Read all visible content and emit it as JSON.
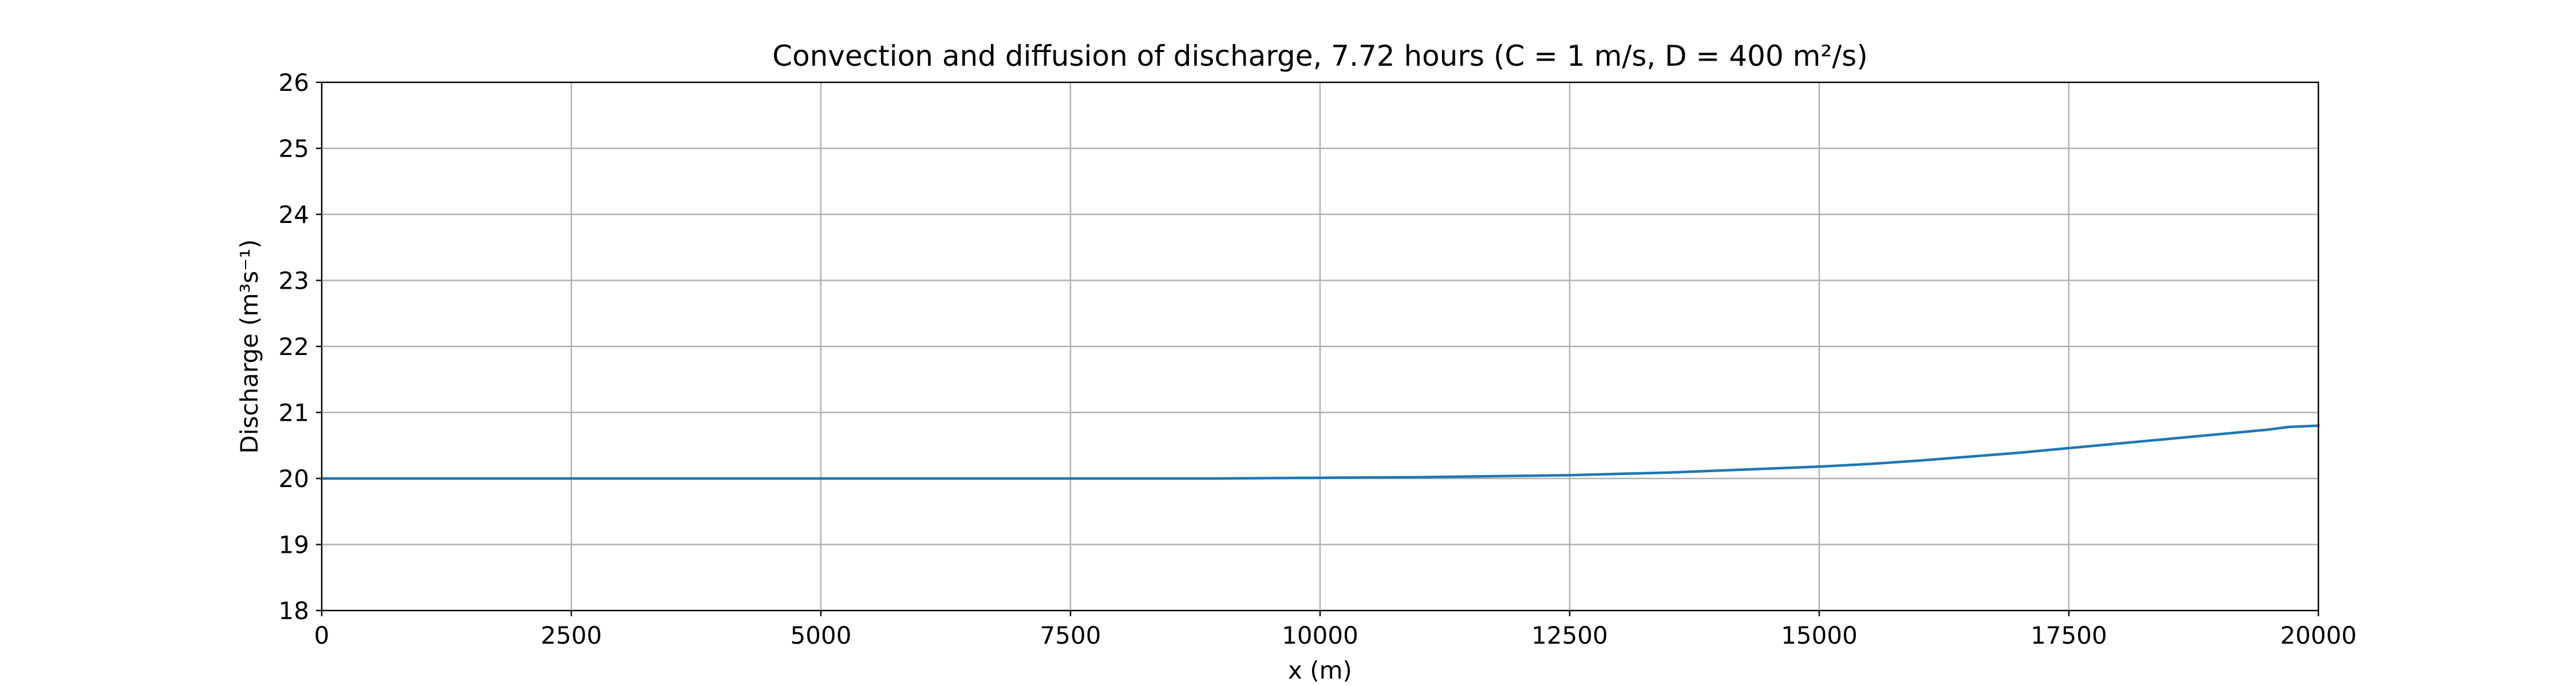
{
  "chart_data": {
    "type": "line",
    "title": "Convection and diffusion of discharge, 7.72 hours (C = 1 m/s, D = 400 m²/s)",
    "xlabel": "x (m)",
    "ylabel": "Discharge (m³s⁻¹)",
    "xlim": [
      0,
      20000
    ],
    "ylim": [
      18,
      26
    ],
    "xticks": [
      0,
      2500,
      5000,
      7500,
      10000,
      12500,
      15000,
      17500,
      20000
    ],
    "yticks": [
      18,
      19,
      20,
      21,
      22,
      23,
      24,
      25,
      26
    ],
    "grid": true,
    "colors": {
      "line": "#1f77b4",
      "grid": "#b0b0b0"
    },
    "series": [
      {
        "x": [
          0,
          2500,
          5000,
          7500,
          9000,
          10000,
          11000,
          12000,
          12500,
          13000,
          13500,
          14000,
          14500,
          15000,
          15500,
          16000,
          16500,
          17000,
          17500,
          18000,
          18500,
          19000,
          19500,
          19700,
          20000
        ],
        "y": [
          20.0,
          20.0,
          20.0,
          20.0,
          20.0,
          20.01,
          20.02,
          20.04,
          20.05,
          20.07,
          20.09,
          20.12,
          20.15,
          20.18,
          20.22,
          20.27,
          20.33,
          20.39,
          20.46,
          20.53,
          20.6,
          20.67,
          20.74,
          20.78,
          20.8
        ]
      }
    ]
  }
}
